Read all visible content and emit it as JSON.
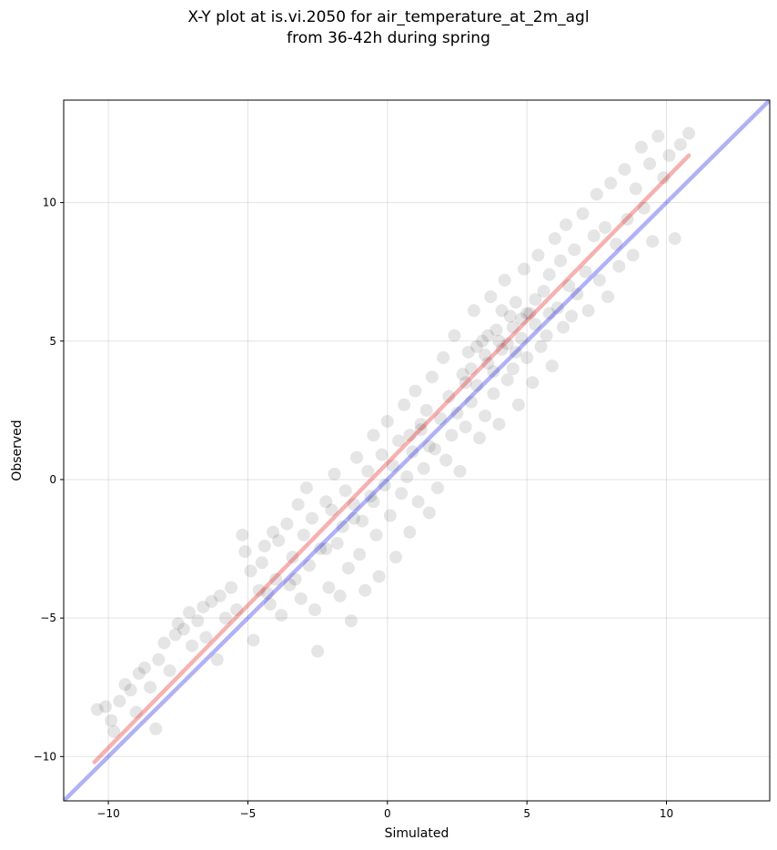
{
  "chart_data": {
    "type": "scatter",
    "title": "X-Y plot at is.vi.2050 for air_temperature_at_2m_agl",
    "subtitle": "from 36-42h during spring",
    "xlabel": "Simulated",
    "ylabel": "Observed",
    "xlim": [
      -11.6,
      13.7
    ],
    "ylim": [
      -11.6,
      13.7
    ],
    "x_ticks": [
      -10,
      -5,
      0,
      5,
      10
    ],
    "y_ticks": [
      -10,
      -5,
      0,
      5,
      10
    ],
    "x_tick_labels": [
      "−10",
      "−5",
      "0",
      "5",
      "10"
    ],
    "y_tick_labels": [
      "−10",
      "−5",
      "0",
      "5",
      "10"
    ],
    "grid": true,
    "legend": "none",
    "point_color": "#000000",
    "point_opacity": 0.1,
    "points": [
      [
        -10.4,
        -8.3
      ],
      [
        -10.1,
        -8.2
      ],
      [
        -9.9,
        -8.7
      ],
      [
        -9.8,
        -9.1
      ],
      [
        -9.6,
        -8.0
      ],
      [
        -9.4,
        -7.4
      ],
      [
        -9.2,
        -7.6
      ],
      [
        -9.0,
        -8.4
      ],
      [
        -8.9,
        -7.0
      ],
      [
        -8.7,
        -6.8
      ],
      [
        -8.5,
        -7.5
      ],
      [
        -8.3,
        -9.0
      ],
      [
        -8.2,
        -6.5
      ],
      [
        -8.0,
        -5.9
      ],
      [
        -7.8,
        -6.9
      ],
      [
        -7.6,
        -5.6
      ],
      [
        -7.5,
        -5.2
      ],
      [
        -7.3,
        -5.4
      ],
      [
        -7.1,
        -4.8
      ],
      [
        -7.0,
        -6.0
      ],
      [
        -6.8,
        -5.1
      ],
      [
        -6.6,
        -4.6
      ],
      [
        -6.5,
        -5.7
      ],
      [
        -6.3,
        -4.4
      ],
      [
        -6.1,
        -6.5
      ],
      [
        -6.0,
        -4.2
      ],
      [
        -5.8,
        -5.0
      ],
      [
        -5.6,
        -3.9
      ],
      [
        -5.4,
        -4.7
      ],
      [
        -5.2,
        -2.0
      ],
      [
        -5.1,
        -2.6
      ],
      [
        -4.9,
        -3.3
      ],
      [
        -4.8,
        -5.8
      ],
      [
        -4.6,
        -4.0
      ],
      [
        -4.5,
        -3.0
      ],
      [
        -4.4,
        -2.4
      ],
      [
        -4.2,
        -4.5
      ],
      [
        -4.1,
        -1.9
      ],
      [
        -4.0,
        -3.6
      ],
      [
        -3.9,
        -2.2
      ],
      [
        -3.8,
        -4.9
      ],
      [
        -3.6,
        -1.6
      ],
      [
        -3.5,
        -3.8
      ],
      [
        -3.4,
        -2.8
      ],
      [
        -3.2,
        -0.9
      ],
      [
        -3.1,
        -4.3
      ],
      [
        -3.0,
        -2.0
      ],
      [
        -2.9,
        -0.3
      ],
      [
        -2.8,
        -3.1
      ],
      [
        -2.7,
        -1.4
      ],
      [
        -2.6,
        -4.7
      ],
      [
        -2.5,
        -6.2
      ],
      [
        -2.4,
        -2.5
      ],
      [
        -2.2,
        -0.8
      ],
      [
        -2.1,
        -3.9
      ],
      [
        -2.0,
        -1.1
      ],
      [
        -1.9,
        0.2
      ],
      [
        -1.8,
        -2.3
      ],
      [
        -1.7,
        -4.2
      ],
      [
        -1.6,
        -1.7
      ],
      [
        -1.5,
        -0.4
      ],
      [
        -1.4,
        -3.2
      ],
      [
        -1.3,
        -5.1
      ],
      [
        -1.2,
        -0.9
      ],
      [
        -1.1,
        0.8
      ],
      [
        -1.0,
        -2.7
      ],
      [
        -0.9,
        -1.5
      ],
      [
        -0.8,
        -4.0
      ],
      [
        -0.7,
        0.3
      ],
      [
        -0.6,
        -0.6
      ],
      [
        -0.5,
        1.6
      ],
      [
        -0.4,
        -2.0
      ],
      [
        -0.3,
        -3.5
      ],
      [
        -0.2,
        0.9
      ],
      [
        -0.1,
        -0.2
      ],
      [
        0.0,
        2.1
      ],
      [
        0.1,
        -1.3
      ],
      [
        0.2,
        0.5
      ],
      [
        0.3,
        -2.8
      ],
      [
        0.4,
        1.4
      ],
      [
        0.5,
        -0.5
      ],
      [
        0.6,
        2.7
      ],
      [
        0.7,
        0.1
      ],
      [
        0.8,
        -1.9
      ],
      [
        0.9,
        1.0
      ],
      [
        1.0,
        3.2
      ],
      [
        1.1,
        -0.8
      ],
      [
        1.2,
        1.8
      ],
      [
        1.3,
        0.4
      ],
      [
        1.4,
        2.5
      ],
      [
        1.5,
        -1.2
      ],
      [
        1.6,
        3.7
      ],
      [
        1.7,
        1.1
      ],
      [
        1.8,
        -0.3
      ],
      [
        1.9,
        2.2
      ],
      [
        2.0,
        4.4
      ],
      [
        2.1,
        0.7
      ],
      [
        2.2,
        3.0
      ],
      [
        2.3,
        1.6
      ],
      [
        2.4,
        5.2
      ],
      [
        2.5,
        2.4
      ],
      [
        2.6,
        0.3
      ],
      [
        2.7,
        3.8
      ],
      [
        2.8,
        1.9
      ],
      [
        2.9,
        4.6
      ],
      [
        3.0,
        2.8
      ],
      [
        3.1,
        6.1
      ],
      [
        3.2,
        3.4
      ],
      [
        3.3,
        1.5
      ],
      [
        3.4,
        5.0
      ],
      [
        3.5,
        2.3
      ],
      [
        3.6,
        4.2
      ],
      [
        3.7,
        6.6
      ],
      [
        3.8,
        3.1
      ],
      [
        3.9,
        5.4
      ],
      [
        4.0,
        2.0
      ],
      [
        4.1,
        4.7
      ],
      [
        4.2,
        7.2
      ],
      [
        4.3,
        3.6
      ],
      [
        4.4,
        5.9
      ],
      [
        4.5,
        4.0
      ],
      [
        4.6,
        6.4
      ],
      [
        4.7,
        2.7
      ],
      [
        4.8,
        5.1
      ],
      [
        4.9,
        7.6
      ],
      [
        5.0,
        4.4
      ],
      [
        5.1,
        6.0
      ],
      [
        5.2,
        3.5
      ],
      [
        5.3,
        5.6
      ],
      [
        5.4,
        8.1
      ],
      [
        5.5,
        4.8
      ],
      [
        5.6,
        6.8
      ],
      [
        5.7,
        5.2
      ],
      [
        5.8,
        7.4
      ],
      [
        5.9,
        4.1
      ],
      [
        6.0,
        8.7
      ],
      [
        6.1,
        6.2
      ],
      [
        6.2,
        7.9
      ],
      [
        6.3,
        5.5
      ],
      [
        6.4,
        9.2
      ],
      [
        6.5,
        7.0
      ],
      [
        6.6,
        5.9
      ],
      [
        6.7,
        8.3
      ],
      [
        6.8,
        6.7
      ],
      [
        7.0,
        9.6
      ],
      [
        7.1,
        7.5
      ],
      [
        7.2,
        6.1
      ],
      [
        7.4,
        8.8
      ],
      [
        7.5,
        10.3
      ],
      [
        7.6,
        7.2
      ],
      [
        7.8,
        9.1
      ],
      [
        7.9,
        6.6
      ],
      [
        8.0,
        10.7
      ],
      [
        8.2,
        8.5
      ],
      [
        8.3,
        7.7
      ],
      [
        8.5,
        11.2
      ],
      [
        8.6,
        9.4
      ],
      [
        8.8,
        8.1
      ],
      [
        8.9,
        10.5
      ],
      [
        9.1,
        12.0
      ],
      [
        9.2,
        9.8
      ],
      [
        9.4,
        11.4
      ],
      [
        9.5,
        8.6
      ],
      [
        9.7,
        12.4
      ],
      [
        9.9,
        10.9
      ],
      [
        10.1,
        11.7
      ],
      [
        10.3,
        8.7
      ],
      [
        10.5,
        12.1
      ],
      [
        10.8,
        12.5
      ],
      [
        3.0,
        4.0
      ],
      [
        3.5,
        4.5
      ],
      [
        4.0,
        5.0
      ],
      [
        4.5,
        5.5
      ],
      [
        5.0,
        6.0
      ],
      [
        3.2,
        4.8
      ],
      [
        3.8,
        3.9
      ],
      [
        4.3,
        4.9
      ],
      [
        4.8,
        5.8
      ],
      [
        2.8,
        3.5
      ],
      [
        3.6,
        5.2
      ],
      [
        4.1,
        6.1
      ],
      [
        4.6,
        4.6
      ],
      [
        5.3,
        6.5
      ],
      [
        5.8,
        6.0
      ],
      [
        1.2,
        2.0
      ],
      [
        1.5,
        1.2
      ],
      [
        0.8,
        1.6
      ],
      [
        -0.5,
        -0.8
      ],
      [
        -1.2,
        -1.4
      ],
      [
        -2.2,
        -2.5
      ],
      [
        -3.3,
        -3.6
      ],
      [
        -4.3,
        -4.1
      ]
    ],
    "lines": [
      {
        "color": "#e62020",
        "opacity": 0.35,
        "width": 4.5,
        "x": [
          -10.5,
          10.8
        ],
        "y": [
          -10.2,
          11.7
        ]
      },
      {
        "color": "#2020e6",
        "opacity": 0.35,
        "width": 4.5,
        "x": [
          -11.6,
          13.7
        ],
        "y": [
          -11.6,
          13.7
        ]
      }
    ]
  }
}
